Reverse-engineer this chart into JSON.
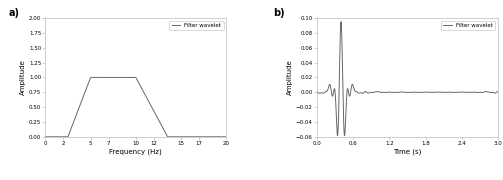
{
  "fig_width": 5.03,
  "fig_height": 1.8,
  "dpi": 100,
  "background_color": "#ffffff",
  "subplot_bg": "#ffffff",
  "line_color": "#666666",
  "line_width": 0.7,
  "label_a": "a)",
  "label_b": "b)",
  "legend_label": "Filter wavelet",
  "plot_a": {
    "xlim": [
      0.0,
      20.0
    ],
    "ylim": [
      0.0,
      2.0
    ],
    "xlabel": "Frequency (Hz)",
    "ylabel": "Amplitude",
    "xticks": [
      0.0,
      2.0,
      5.0,
      7.0,
      10.0,
      12.0,
      15.0,
      17.0,
      20.0
    ],
    "yticks": [
      0.0,
      0.25,
      0.5,
      0.75,
      1.0,
      1.25,
      1.5,
      1.75,
      2.0
    ],
    "filter_corners": [
      2.5,
      5.0,
      10.0,
      13.5
    ]
  },
  "plot_b": {
    "xlim": [
      0.0,
      3.0
    ],
    "ylim": [
      -0.06,
      0.1
    ],
    "xlabel": "Time (s)",
    "ylabel": "Amplitude",
    "xticks": [
      0.0,
      0.6,
      1.2,
      1.8,
      2.4,
      3.0
    ],
    "yticks": [
      -0.06,
      -0.04,
      -0.02,
      0.0,
      0.02,
      0.04,
      0.06,
      0.08,
      0.1
    ],
    "dt": 0.002,
    "duration": 3.0,
    "f1": 2.5,
    "f2": 5.0,
    "f3": 10.0,
    "f4": 13.5,
    "peak_time": 0.4,
    "peak_amp": 0.095
  }
}
